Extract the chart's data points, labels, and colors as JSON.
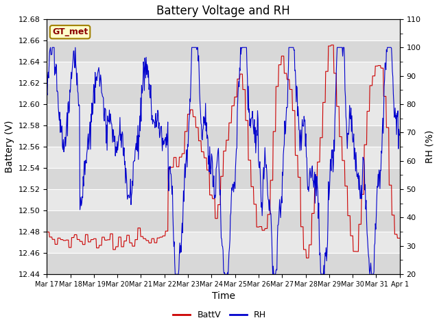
{
  "title": "Battery Voltage and RH",
  "xlabel": "Time",
  "ylabel_left": "Battery (V)",
  "ylabel_right": "RH (%)",
  "annotation": "GT_met",
  "ylim_left": [
    12.44,
    12.68
  ],
  "ylim_right": [
    20,
    110
  ],
  "yticks_left": [
    12.44,
    12.46,
    12.48,
    12.5,
    12.52,
    12.54,
    12.56,
    12.58,
    12.6,
    12.62,
    12.64,
    12.66,
    12.68
  ],
  "yticks_right": [
    20,
    30,
    40,
    50,
    60,
    70,
    80,
    90,
    100,
    110
  ],
  "xtick_labels": [
    "Mar 17",
    "Mar 18",
    "Mar 19",
    "Mar 20",
    "Mar 21",
    "Mar 22",
    "Mar 23",
    "Mar 24",
    "Mar 25",
    "Mar 26",
    "Mar 27",
    "Mar 28",
    "Mar 29",
    "Mar 30",
    "Mar 31",
    "Apr 1"
  ],
  "color_battv": "#cc0000",
  "color_rh": "#0000cc",
  "legend_labels": [
    "BattV",
    "RH"
  ],
  "plot_bg_color": "#e8e8e8",
  "title_fontsize": 12,
  "axis_label_fontsize": 10,
  "tick_fontsize": 8
}
